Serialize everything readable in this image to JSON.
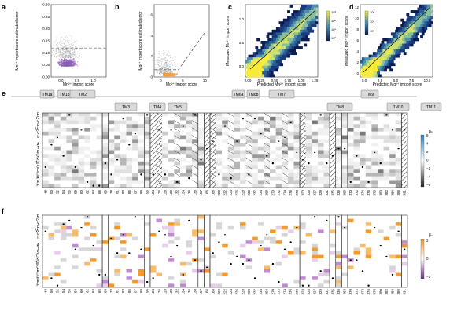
{
  "figure": {
    "panel_letters": [
      "a",
      "b",
      "c",
      "d",
      "e",
      "f"
    ],
    "amino_acids": [
      "P",
      "G",
      "Y",
      "F",
      "W",
      "V",
      "L",
      "I",
      "A",
      "T",
      "S",
      "Q",
      "N",
      "M",
      "C",
      "E",
      "D",
      "R",
      "K",
      "H"
    ],
    "tm_labels": [
      "TM1a",
      "TM1b",
      "TM2",
      "TM3",
      "TM4",
      "TM5",
      "TM6a",
      "TM6b",
      "TM7",
      "TM8",
      "TM9",
      "TM10",
      "TM11"
    ],
    "heatmap_e_legend": {
      "title": "βₛ",
      "ticks": [
        "6",
        "4",
        "2",
        "0",
        "−2",
        "−4",
        "−6"
      ]
    },
    "heatmap_f_legend": {
      "title": "βₛ",
      "ticks": [
        "2",
        "0",
        "−2"
      ]
    },
    "position_labels": [
      "48",
      "50",
      "52",
      "54",
      "56",
      "58",
      "60",
      "62",
      "64",
      "66",
      "69",
      "78",
      "81",
      "83",
      "85",
      "87",
      "89",
      "96",
      "124",
      "126",
      "128",
      "130",
      "132",
      "134",
      "136",
      "138",
      "157",
      "166",
      "168",
      "220",
      "222",
      "224",
      "226",
      "228",
      "230",
      "232",
      "234",
      "268",
      "270",
      "272",
      "274",
      "276",
      "278",
      "323",
      "325",
      "327",
      "329",
      "331",
      "335",
      "336",
      "363",
      "370",
      "372",
      "374",
      "376",
      "378",
      "380",
      "382",
      "384",
      "386",
      "391"
    ]
  },
  "chart_data": [
    {
      "panel": "a",
      "type": "scatter",
      "xlabel": "Mn²⁺ import score",
      "ylabel": "Mn²⁺ import score estimated error",
      "x_ticks": [
        "0.0",
        "0.5",
        "1.0"
      ],
      "y_ticks": [
        "0.00",
        "0.05",
        "0.10",
        "0.15",
        "0.20",
        "0.25",
        "0.30"
      ],
      "xlim": [
        -0.3,
        1.4
      ],
      "ylim": [
        0,
        0.3
      ],
      "threshold_y": 0.12,
      "series": [
        {
          "name": "passing variants",
          "color": "#8e5db8"
        },
        {
          "name": "all variants",
          "color": "#8a8a8a"
        }
      ]
    },
    {
      "panel": "b",
      "type": "scatter",
      "xlabel": "Mg²⁺ import score",
      "ylabel": "Mg²⁺ import score estimated error",
      "x_ticks": [
        "0",
        "5",
        "10"
      ],
      "y_ticks": [
        "0",
        "2",
        "4",
        "6"
      ],
      "xlim": [
        -1.5,
        11
      ],
      "ylim": [
        0,
        7
      ],
      "threshold_segments": [
        [
          -1.5,
          0.7
        ],
        [
          4,
          0.7
        ],
        [
          10,
          4.3
        ]
      ],
      "series": [
        {
          "name": "passing variants",
          "color": "#f39a3a"
        },
        {
          "name": "all variants",
          "color": "#8a8a8a"
        }
      ]
    },
    {
      "panel": "c",
      "type": "heatmap",
      "xlabel": "Predicted Mn²⁺ import score",
      "ylabel": "Measured Mn²⁺ import score",
      "x_ticks": [
        "0.00",
        "0.25",
        "0.50",
        "0.75",
        "1.00",
        "1.25"
      ],
      "y_ticks": [
        "0.0",
        "0.5",
        "1.0"
      ],
      "colorbar_ticks": [
        "10³",
        "10²",
        "10¹",
        "10⁰"
      ]
    },
    {
      "panel": "d",
      "type": "heatmap",
      "xlabel": "Predicted Mg²⁺ import score",
      "ylabel": "Measured Mg²⁺ import score",
      "x_ticks": [
        "0.0",
        "2.5",
        "5.0",
        "7.5",
        "10.0"
      ],
      "y_ticks": [
        "0",
        "2",
        "4",
        "6",
        "8",
        "10",
        "12"
      ],
      "colorbar_ticks": [
        "10²",
        "10¹",
        "10⁰"
      ]
    }
  ]
}
